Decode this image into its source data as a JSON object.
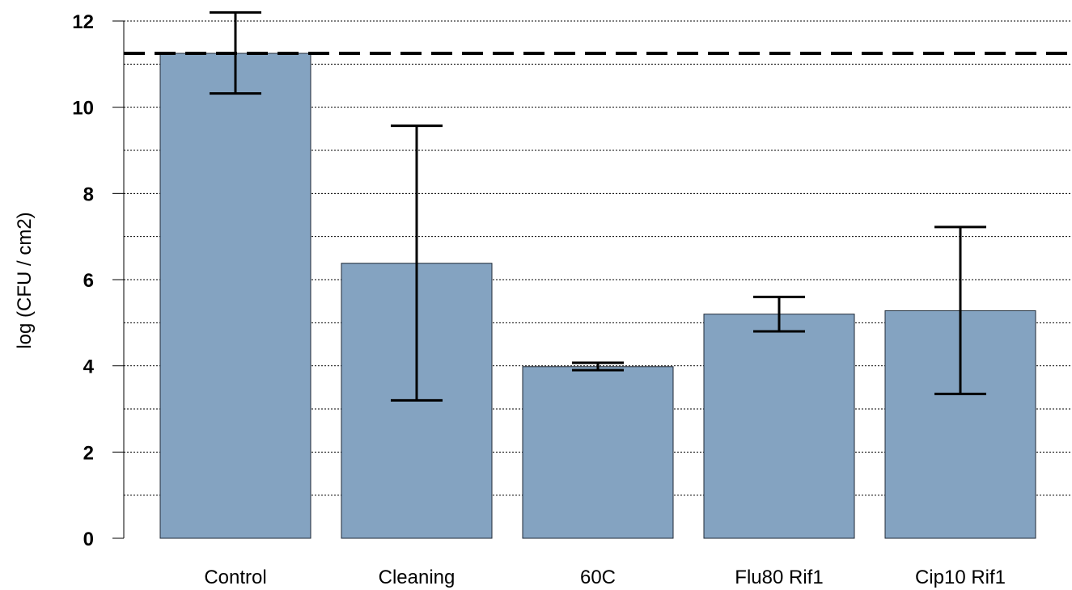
{
  "chart_data": {
    "type": "bar",
    "title": "",
    "xlabel": "",
    "ylabel": "log (CFU / cm2)",
    "categories": [
      "Control",
      "Cleaning",
      "60C",
      "Flu80 Rif1",
      "Cip10 Rif1"
    ],
    "values": [
      11.25,
      6.38,
      3.98,
      5.2,
      5.28
    ],
    "error_low": [
      10.32,
      3.2,
      3.9,
      4.8,
      3.35
    ],
    "error_high": [
      12.2,
      9.57,
      4.07,
      5.6,
      7.22
    ],
    "reference_line": 11.25,
    "ylim": [
      0,
      12.2
    ],
    "y_ticks": [
      0,
      2,
      4,
      6,
      8,
      10,
      12
    ],
    "y_tick_labels": [
      "0",
      "2",
      "4",
      "6",
      "8",
      "10",
      "12"
    ],
    "grid_lines": [
      1,
      2,
      3,
      4,
      5,
      6,
      7,
      8,
      9,
      10,
      11,
      12
    ],
    "grid": true,
    "bar_color": "#84a3c1",
    "bar_edge_color": "#1f2a36"
  }
}
